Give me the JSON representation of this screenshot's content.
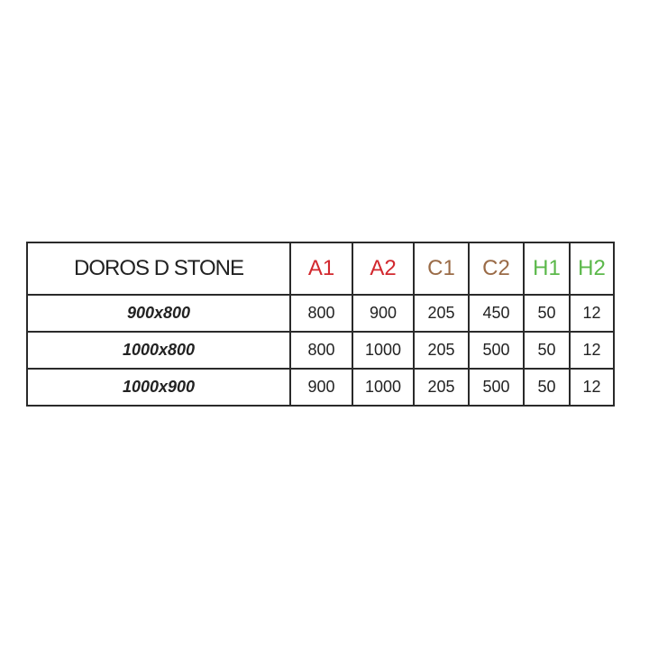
{
  "title": "DOROS D STONE",
  "colors": {
    "A": "#d2282e",
    "C": "#9a6b47",
    "H": "#5bb84a"
  },
  "columns": [
    {
      "label": "A1",
      "color": "#d2282e"
    },
    {
      "label": "A2",
      "color": "#d2282e"
    },
    {
      "label": "C1",
      "color": "#9a6b47"
    },
    {
      "label": "C2",
      "color": "#9a6b47"
    },
    {
      "label": "H1",
      "color": "#5bb84a"
    },
    {
      "label": "H2",
      "color": "#5bb84a"
    }
  ],
  "rows": [
    {
      "size": "900x800",
      "values": [
        "800",
        "900",
        "205",
        "450",
        "50",
        "12"
      ]
    },
    {
      "size": "1000x800",
      "values": [
        "800",
        "1000",
        "205",
        "500",
        "50",
        "12"
      ]
    },
    {
      "size": "1000x900",
      "values": [
        "900",
        "1000",
        "205",
        "500",
        "50",
        "12"
      ]
    }
  ]
}
